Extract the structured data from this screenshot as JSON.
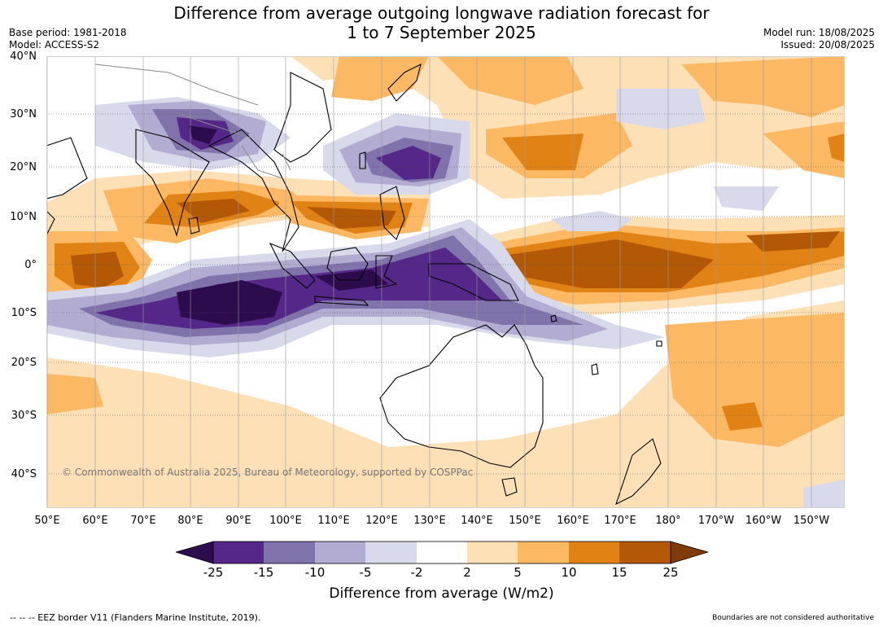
{
  "title": {
    "line1": "Difference from average outgoing longwave radiation forecast for",
    "line2": "1 to 7 September 2025"
  },
  "meta": {
    "base_period": "Base period: 1981-2018",
    "model": "Model: ACCESS-S2",
    "model_run": "Model run: 18/08/2025",
    "issued": "Issued: 20/08/2025"
  },
  "map": {
    "copyright": "© Commonwealth of Australia 2025, Bureau of Meteorology, supported by COSPPac",
    "lat_labels": [
      "40°N",
      "30°N",
      "20°N",
      "10°N",
      "0°",
      "10°S",
      "20°S",
      "30°S",
      "40°S"
    ],
    "lon_labels": [
      "50°E",
      "60°E",
      "70°E",
      "80°E",
      "90°E",
      "100°E",
      "110°E",
      "120°E",
      "130°E",
      "140°E",
      "150°E",
      "160°E",
      "170°E",
      "180°",
      "170°W",
      "160°W",
      "150°W"
    ]
  },
  "colorbar": {
    "title": "Difference from average (W/m2)",
    "ticks": [
      "-25",
      "-15",
      "-10",
      "-5",
      "-2",
      "2",
      "5",
      "10",
      "15",
      "25"
    ],
    "colors": {
      "lt_minus25": "#2d0c4e",
      "m25_m15": "#542788",
      "m15_m10": "#8073ac",
      "m10_m5": "#b2abd2",
      "m5_m2": "#d8daeb",
      "m2_2": "#ffffff",
      "p2_p5": "#fee0b6",
      "p5_p10": "#fdb863",
      "p10_p15": "#e08214",
      "p15_p25": "#b35806",
      "gt_25": "#7f3b08"
    }
  },
  "footer": {
    "left": "--  --  -- EEZ border V11 (Flanders Marine Institute, 2019).",
    "right": "Boundaries are not considered authoritative"
  }
}
